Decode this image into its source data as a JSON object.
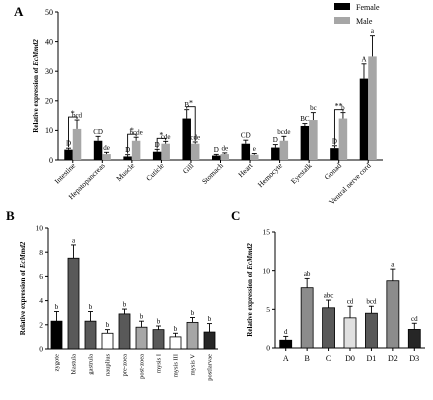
{
  "chart_data": [
    {
      "panel": "A",
      "type": "bar",
      "ylabel_prefix": "Relative expression of ",
      "ylabel_gene": "EcMmd2",
      "ylim": [
        0,
        50
      ],
      "yticks": [
        0,
        10,
        20,
        30,
        40,
        50
      ],
      "categories": [
        "Intestine",
        "Hepatopancreas",
        "Muscle",
        "Cuticle",
        "Gill",
        "Stomach",
        "Heart",
        "Hemocyte",
        "Eyestalk",
        "Gonad",
        "Ventral nerve cord"
      ],
      "series": [
        {
          "name": "Female",
          "color": "#000000",
          "values": [
            3.5,
            6.5,
            1.2,
            2.8,
            14.0,
            1.5,
            5.5,
            4.2,
            11.5,
            4.0,
            27.5
          ],
          "errors": [
            0.5,
            1.5,
            0.6,
            0.8,
            3.0,
            0.4,
            1.2,
            1.0,
            0.8,
            0.8,
            5.0
          ],
          "letters": [
            "D",
            "CD",
            "D",
            "D",
            "B",
            "D",
            "CD",
            "D",
            "BC",
            "D",
            "A"
          ]
        },
        {
          "name": "Male",
          "color": "#a6a6a6",
          "values": [
            10.5,
            2.0,
            6.5,
            5.5,
            5.5,
            2.0,
            1.8,
            6.5,
            13.5,
            14.0,
            35.0
          ],
          "errors": [
            3.0,
            0.6,
            1.2,
            0.8,
            0.6,
            0.4,
            0.4,
            1.5,
            2.5,
            2.0,
            7.0
          ],
          "letters": [
            "bcd",
            "de",
            "bcde",
            "cde",
            "cde",
            "de",
            "e",
            "bcde",
            "bc",
            "b",
            "a"
          ]
        }
      ],
      "significance": [
        "*",
        "",
        "*",
        "*",
        "*",
        "",
        "",
        "",
        "",
        "**",
        ""
      ]
    },
    {
      "panel": "B",
      "type": "bar",
      "ylabel_prefix": "Relative expression of ",
      "ylabel_gene": "EcMmd2",
      "ylim": [
        0,
        10
      ],
      "yticks": [
        0,
        2,
        4,
        6,
        8,
        10
      ],
      "categories": [
        "zygote",
        "blastula",
        "gastrula",
        "nauplius",
        "pre-zoea",
        "post-zoea",
        "mysis I",
        "mysis III",
        "mysis V",
        "postlarvae"
      ],
      "values": [
        2.3,
        7.5,
        2.3,
        1.3,
        2.9,
        1.8,
        1.6,
        1.0,
        2.2,
        1.4
      ],
      "errors": [
        0.8,
        1.1,
        0.8,
        0.3,
        0.4,
        0.5,
        0.3,
        0.3,
        0.4,
        0.7
      ],
      "letters": [
        "b",
        "a",
        "b",
        "b",
        "b",
        "b",
        "b",
        "b",
        "b",
        "b"
      ],
      "colors": [
        "#000000",
        "#595959",
        "#595959",
        "#ffffff",
        "#595959",
        "#a6a6a6",
        "#595959",
        "#ffffff",
        "#a6a6a6",
        "#262626"
      ]
    },
    {
      "panel": "C",
      "type": "bar",
      "ylabel_prefix": "Relative expression of ",
      "ylabel_gene": "EcMmd2",
      "ylim": [
        0,
        15
      ],
      "yticks": [
        0,
        5,
        10,
        15
      ],
      "categories": [
        "A",
        "B",
        "C",
        "D0",
        "D1",
        "D2",
        "D3"
      ],
      "values": [
        1.0,
        7.8,
        5.2,
        3.9,
        4.5,
        8.7,
        2.4
      ],
      "errors": [
        0.5,
        1.2,
        1.0,
        1.5,
        0.9,
        1.5,
        0.8
      ],
      "letters": [
        "d",
        "ab",
        "abc",
        "cd",
        "bcd",
        "a",
        "cd"
      ],
      "colors": [
        "#000000",
        "#8c8c8c",
        "#595959",
        "#e0e0e0",
        "#595959",
        "#8c8c8c",
        "#262626"
      ]
    }
  ]
}
